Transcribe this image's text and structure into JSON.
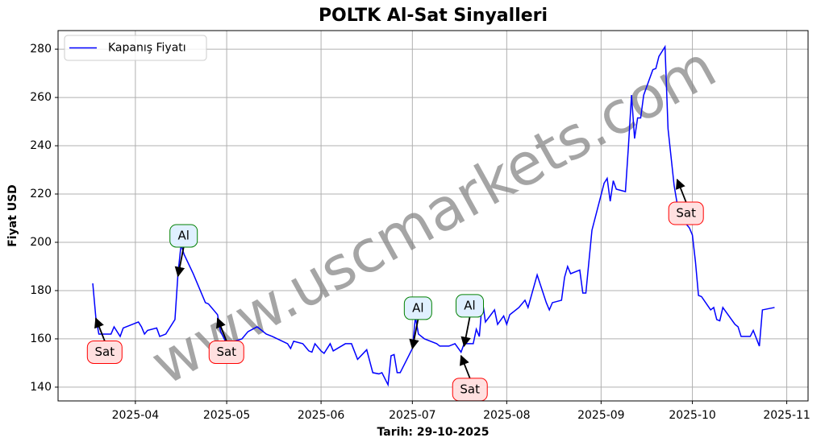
{
  "chart_data": {
    "type": "line",
    "title": "POLTK Al-Sat Sinyalleri",
    "xlabel": "Tarih: 29-10-2025",
    "ylabel": "Fiyat USD",
    "watermark": "www.uscmarkets.com",
    "x": [
      20165,
      20166,
      20167,
      20171,
      20172,
      20174,
      20175,
      20180,
      20181,
      20182,
      20183,
      20186,
      20187,
      20189,
      20192,
      20193,
      20194,
      20195,
      20198,
      20202,
      20203,
      20206,
      20207,
      20209,
      20214,
      20216,
      20219,
      20222,
      20224,
      20229,
      20230,
      20231,
      20234,
      20236,
      20237,
      20238,
      20240,
      20241,
      20243,
      20244,
      20248,
      20250,
      20252,
      20255,
      20257,
      20259,
      20260,
      20262,
      20263,
      20264,
      20265,
      20266,
      20269,
      20270,
      20271,
      20272,
      20274,
      20278,
      20279,
      20282,
      20284,
      20286,
      20287,
      20290,
      20291,
      20292,
      20293,
      20294,
      20297,
      20298,
      20300,
      20301,
      20302,
      20305,
      20307,
      20308,
      20311,
      20314,
      20315,
      20316,
      20319,
      20320,
      20321,
      20322,
      20325,
      20326,
      20327,
      20329,
      20333,
      20334,
      20335,
      20336,
      20337,
      20340,
      20341,
      20342,
      20343,
      20344,
      20345,
      20346,
      20349,
      20350,
      20351,
      20353,
      20354,
      20356,
      20357,
      20359,
      20361,
      20362,
      20363,
      20364,
      20365,
      20368,
      20369,
      20370,
      20371,
      20372,
      20376,
      20377,
      20378,
      20381,
      20382,
      20384,
      20385,
      20389
    ],
    "series": [
      {
        "name": "Kapanış Fiyatı",
        "color": "#0000ff",
        "values": [
          183,
          169,
          162,
          162,
          165,
          161,
          164.5,
          167,
          165,
          162,
          163.5,
          164.5,
          161,
          162,
          168,
          187,
          199,
          195,
          187,
          175,
          174.5,
          170,
          163,
          158,
          160,
          163,
          165,
          162,
          161,
          158,
          156,
          159,
          158,
          155,
          154.5,
          158,
          155,
          154,
          158,
          155,
          158,
          158,
          151.5,
          155.5,
          146,
          145.5,
          146,
          141,
          153,
          153.5,
          146,
          146,
          153.5,
          156,
          169,
          162,
          160,
          158,
          157,
          157,
          158,
          154.5,
          158,
          158,
          164,
          161,
          176,
          167,
          172,
          166,
          169.5,
          166,
          170,
          173,
          176,
          173,
          186.5,
          175,
          172,
          175,
          176,
          185.5,
          190,
          187,
          188.5,
          179,
          179,
          205,
          224.5,
          226.5,
          217,
          225.5,
          222,
          221,
          240,
          261,
          243,
          251.5,
          251.5,
          261,
          271.5,
          272,
          277,
          281,
          247,
          223.5,
          216,
          209,
          206,
          203,
          192,
          178,
          177.5,
          172,
          173,
          168,
          167.5,
          173,
          166,
          165,
          161,
          161,
          163.5,
          157,
          172,
          173
        ]
      }
    ],
    "annotations": [
      {
        "text": "Sat",
        "x": 20166,
        "y": 168.5,
        "color": "#ff0000",
        "facecolor": "#ffe0e0",
        "placement": "below"
      },
      {
        "text": "Al",
        "x": 20193,
        "y": 186,
        "color": "#008000",
        "facecolor": "#e0f0ff",
        "placement": "above"
      },
      {
        "text": "Sat",
        "x": 20206,
        "y": 168.5,
        "color": "#ff0000",
        "facecolor": "#ffe0e0",
        "placement": "below"
      },
      {
        "text": "Al",
        "x": 20270,
        "y": 156,
        "color": "#008000",
        "facecolor": "#e0f0ff",
        "placement": "above"
      },
      {
        "text": "Sat",
        "x": 20286,
        "y": 153,
        "color": "#ff0000",
        "facecolor": "#ffe0e0",
        "placement": "below"
      },
      {
        "text": "Al",
        "x": 20287,
        "y": 157,
        "color": "#008000",
        "facecolor": "#e0f0ff",
        "placement": "above"
      },
      {
        "text": "Sat",
        "x": 20357,
        "y": 226,
        "color": "#ff0000",
        "facecolor": "#ffe0e0",
        "placement": "below"
      }
    ],
    "xlim": [
      20153.6,
      20400
    ],
    "ylim": [
      134.3,
      287.7
    ],
    "xticks": [
      {
        "value": 20179,
        "label": "2025-04"
      },
      {
        "value": 20209,
        "label": "2025-05"
      },
      {
        "value": 20240,
        "label": "2025-06"
      },
      {
        "value": 20270,
        "label": "2025-07"
      },
      {
        "value": 20301,
        "label": "2025-08"
      },
      {
        "value": 20332,
        "label": "2025-09"
      },
      {
        "value": 20362,
        "label": "2025-10"
      },
      {
        "value": 20393,
        "label": "2025-11"
      }
    ],
    "yticks": [
      140,
      160,
      180,
      200,
      220,
      240,
      260,
      280
    ],
    "grid": true,
    "legend": "upper left"
  }
}
